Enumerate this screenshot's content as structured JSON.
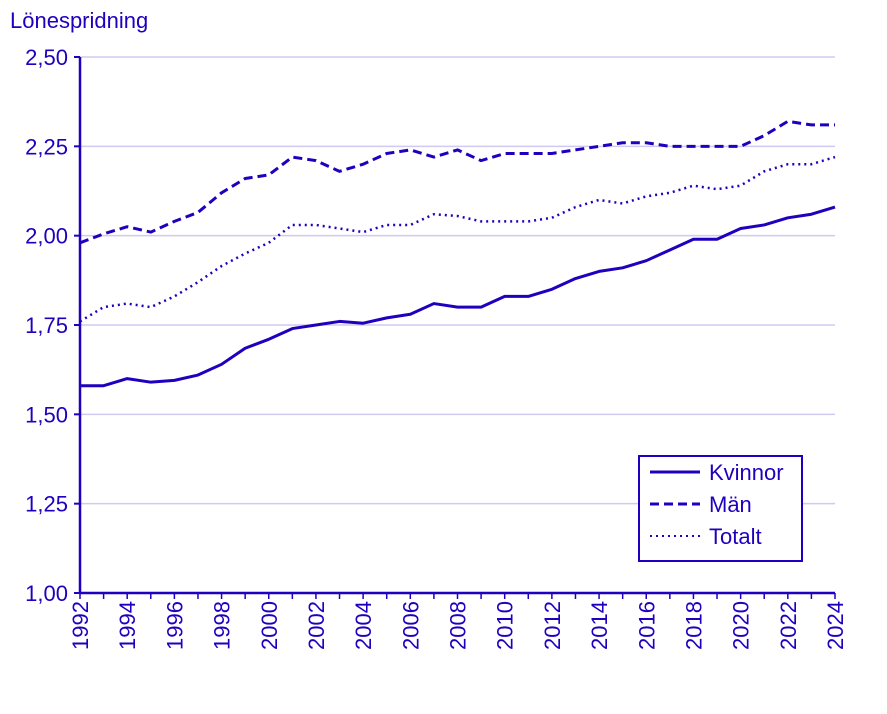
{
  "chart_data": {
    "type": "line",
    "ylabel": "Lönespridning",
    "xlabel": "",
    "ylim": [
      1.0,
      2.5
    ],
    "yticks": [
      "1,00",
      "1,25",
      "1,50",
      "1,75",
      "2,00",
      "2,25",
      "2,50"
    ],
    "ytick_values": [
      1.0,
      1.25,
      1.5,
      1.75,
      2.0,
      2.25,
      2.5
    ],
    "xticks": [
      "1992",
      "1994",
      "1996",
      "1998",
      "2000",
      "2002",
      "2004",
      "2006",
      "2008",
      "2010",
      "2012",
      "2014",
      "2016",
      "2018",
      "2020",
      "2022",
      "2024"
    ],
    "grid": "horizontal",
    "legend_position": "bottom-right",
    "color": "#1e00be",
    "x": [
      1992,
      1993,
      1994,
      1995,
      1996,
      1997,
      1998,
      1999,
      2000,
      2001,
      2002,
      2003,
      2004,
      2005,
      2006,
      2007,
      2008,
      2009,
      2010,
      2011,
      2012,
      2013,
      2014,
      2015,
      2016,
      2017,
      2018,
      2019,
      2020,
      2021,
      2022,
      2023,
      2024
    ],
    "series": [
      {
        "name": "Kvinnor",
        "style": "solid",
        "values": [
          1.58,
          1.58,
          1.6,
          1.59,
          1.595,
          1.61,
          1.64,
          1.685,
          1.71,
          1.74,
          1.75,
          1.76,
          1.755,
          1.77,
          1.78,
          1.81,
          1.8,
          1.8,
          1.83,
          1.83,
          1.85,
          1.88,
          1.9,
          1.91,
          1.93,
          1.96,
          1.99,
          1.99,
          2.02,
          2.03,
          2.05,
          2.06,
          2.08
        ]
      },
      {
        "name": "Män",
        "style": "dashed",
        "values": [
          1.98,
          2.005,
          2.025,
          2.01,
          2.04,
          2.065,
          2.12,
          2.16,
          2.17,
          2.22,
          2.21,
          2.18,
          2.2,
          2.23,
          2.24,
          2.22,
          2.24,
          2.21,
          2.23,
          2.23,
          2.23,
          2.24,
          2.25,
          2.26,
          2.26,
          2.25,
          2.25,
          2.25,
          2.25,
          2.28,
          2.32,
          2.31,
          2.31
        ]
      },
      {
        "name": "Totalt",
        "style": "dotted",
        "values": [
          1.76,
          1.8,
          1.81,
          1.8,
          1.83,
          1.87,
          1.915,
          1.95,
          1.98,
          2.03,
          2.03,
          2.02,
          2.01,
          2.03,
          2.03,
          2.06,
          2.055,
          2.04,
          2.04,
          2.04,
          2.05,
          2.08,
          2.1,
          2.09,
          2.11,
          2.12,
          2.14,
          2.13,
          2.14,
          2.18,
          2.2,
          2.2,
          2.22
        ]
      }
    ]
  }
}
